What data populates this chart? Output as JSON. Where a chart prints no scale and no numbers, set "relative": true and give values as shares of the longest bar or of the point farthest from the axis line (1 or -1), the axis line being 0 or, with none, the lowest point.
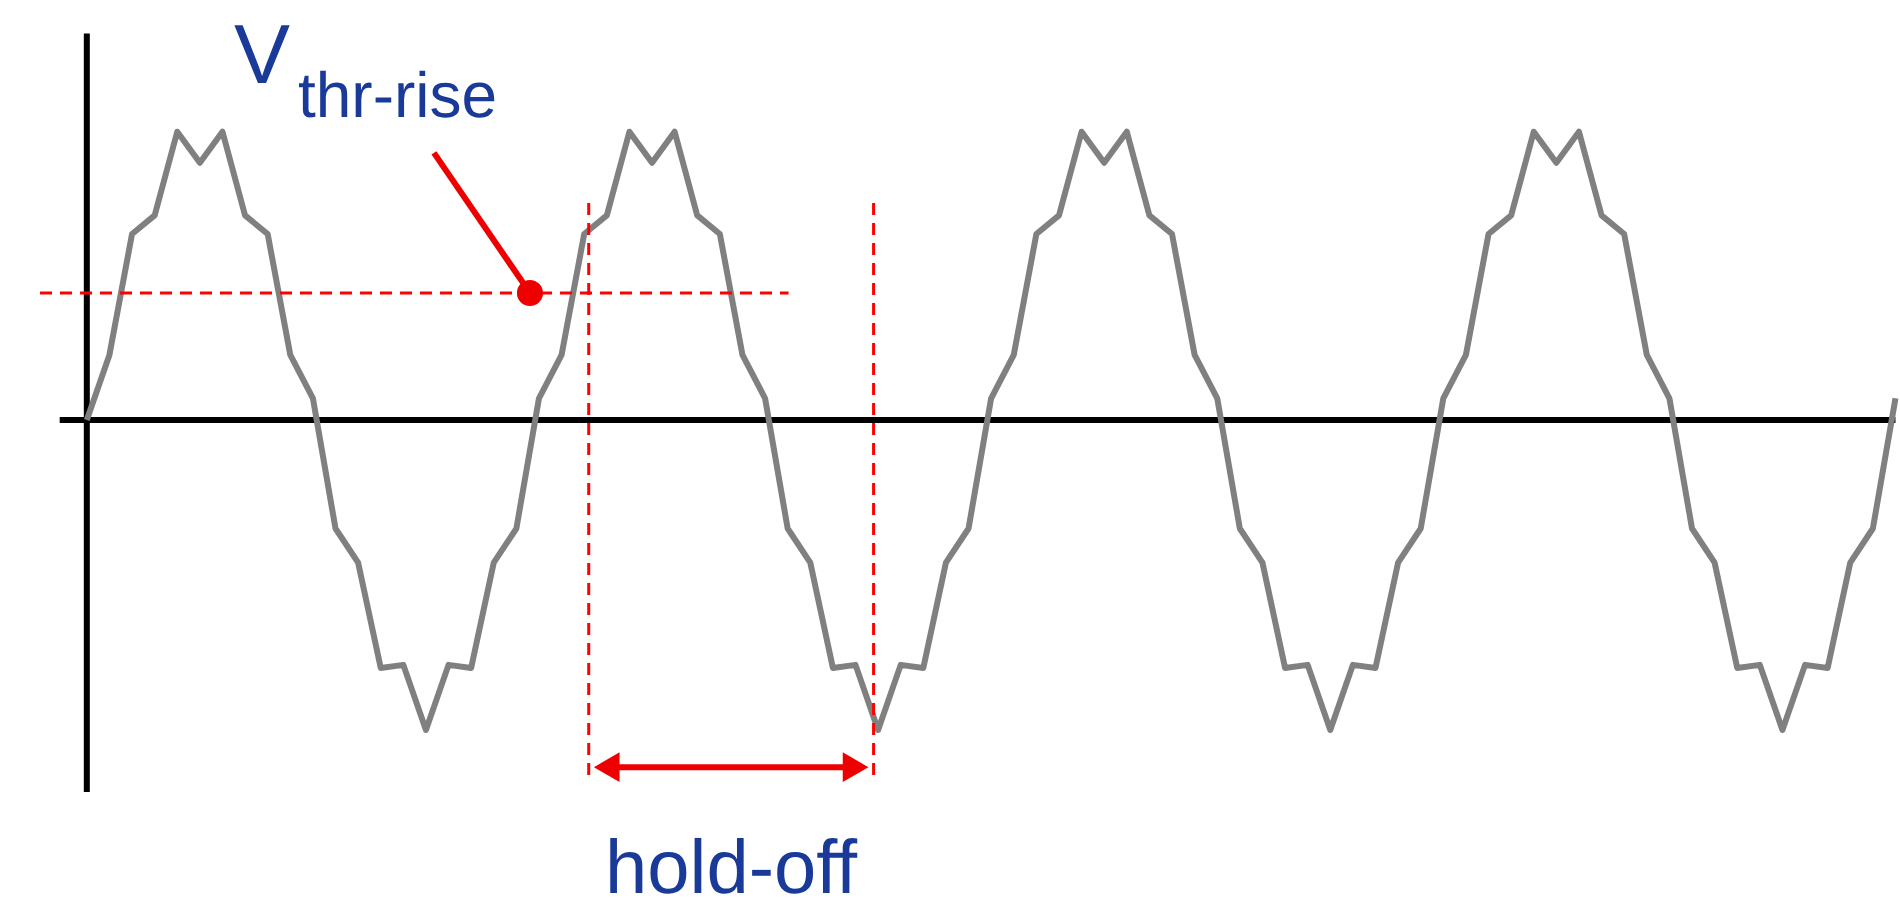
{
  "chart_data": {
    "type": "line",
    "relative": true,
    "categories": [
      null,
      null,
      null,
      null,
      null,
      null,
      null,
      null,
      null,
      null,
      null,
      null,
      null,
      null,
      null,
      null,
      null,
      null,
      null,
      null,
      null,
      null,
      null,
      null,
      null,
      null,
      null,
      null,
      null,
      null,
      null,
      null,
      null,
      null,
      null,
      null,
      null,
      null,
      null,
      null,
      null,
      null,
      null,
      null,
      null,
      null,
      null,
      null,
      null,
      null,
      null,
      null,
      null,
      null,
      null,
      null,
      null,
      null,
      null,
      null,
      null,
      null,
      null,
      null,
      null,
      null,
      null,
      null,
      null,
      null,
      null,
      null,
      null,
      null,
      null,
      null,
      null,
      null,
      null,
      null,
      null
    ],
    "series": [
      {
        "color": "#808080",
        "values": [
          0,
          0.21,
          0.6,
          0.66,
          0.93,
          0.83,
          0.93,
          0.66,
          0.6,
          0.21,
          0.07,
          -0.35,
          -0.46,
          -0.8,
          -0.79,
          -1,
          -0.79,
          -0.8,
          -0.46,
          -0.35,
          0.07,
          0.21,
          0.6,
          0.66,
          0.93,
          0.83,
          0.93,
          0.66,
          0.6,
          0.21,
          0.07,
          -0.35,
          -0.46,
          -0.8,
          -0.79,
          -1,
          -0.79,
          -0.8,
          -0.46,
          -0.35,
          0.07,
          0.21,
          0.6,
          0.66,
          0.93,
          0.83,
          0.93,
          0.66,
          0.6,
          0.21,
          0.07,
          -0.35,
          -0.46,
          -0.8,
          -0.79,
          -1,
          -0.79,
          -0.8,
          -0.46,
          -0.35,
          0.07,
          0.21,
          0.6,
          0.66,
          0.93,
          0.83,
          0.93,
          0.66,
          0.6,
          0.21,
          0.07,
          -0.35,
          -0.46,
          -0.8,
          -0.79,
          -1,
          -0.79,
          -0.8,
          -0.46,
          -0.35,
          0.07
        ]
      }
    ],
    "ref_lines": [
      {
        "axis": "y",
        "value": 0.41,
        "color": "#ff0000",
        "line_style": "dashed"
      }
    ],
    "annotations": [
      "V$_{thr-rise}$",
      "hold-off"
    ]
  }
}
